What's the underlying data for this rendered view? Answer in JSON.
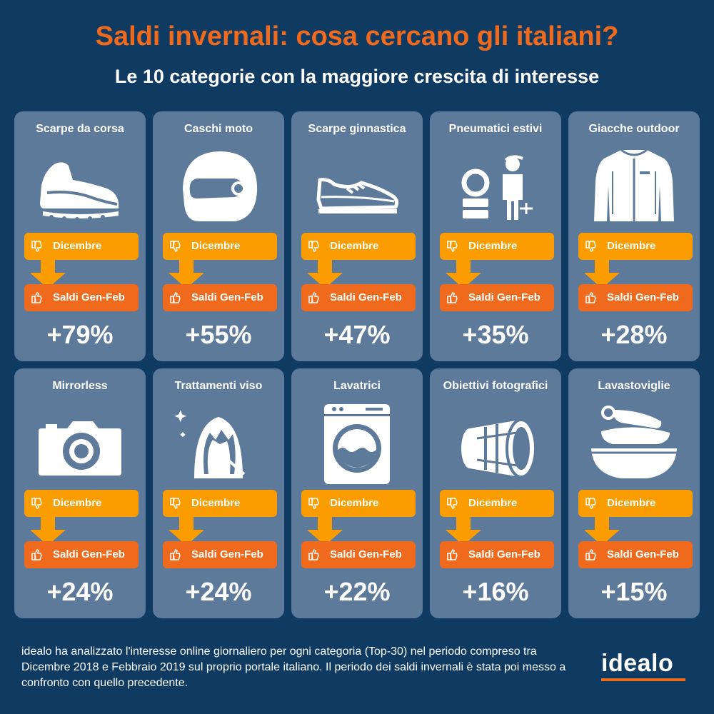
{
  "title": "Saldi invernali: cosa cercano gli italiani?",
  "subtitle": "Le 10 categorie con la maggiore crescita di interesse",
  "colors": {
    "background": "#0f3b63",
    "card": "#5e7a9a",
    "accent_orange": "#f06a1d",
    "accent_amber": "#fb9d00"
  },
  "labels": {
    "before": "Dicembre",
    "after": "Saldi Gen-Feb"
  },
  "categories": [
    {
      "name": "Scarpe da corsa",
      "change": "+79%",
      "icon": "running-shoe-icon"
    },
    {
      "name": "Caschi moto",
      "change": "+55%",
      "icon": "motorcycle-helmet-icon"
    },
    {
      "name": "Scarpe ginnastica",
      "change": "+47%",
      "icon": "sneaker-icon"
    },
    {
      "name": "Pneumatici estivi",
      "change": "+35%",
      "icon": "tyres-mechanic-icon"
    },
    {
      "name": "Giacche outdoor",
      "change": "+28%",
      "icon": "jacket-icon"
    },
    {
      "name": "Mirrorless",
      "change": "+24%",
      "icon": "camera-icon"
    },
    {
      "name": "Trattamenti viso",
      "change": "+24%",
      "icon": "face-treatment-icon"
    },
    {
      "name": "Lavatrici",
      "change": "+22%",
      "icon": "washing-machine-icon"
    },
    {
      "name": "Obiettivi fotografici",
      "change": "+16%",
      "icon": "camera-lens-icon"
    },
    {
      "name": "Lavastoviglie",
      "change": "+15%",
      "icon": "dishes-icon"
    }
  ],
  "footer": {
    "text": "idealo ha analizzato l'interesse online giornaliero per ogni categoria (Top-30) nel periodo compreso tra Dicembre 2018 e Febbraio 2019 sul proprio portale italiano. Il periodo dei saldi invernali è stata poi messo a confronto con quello precedente.",
    "logo": "idealo"
  }
}
